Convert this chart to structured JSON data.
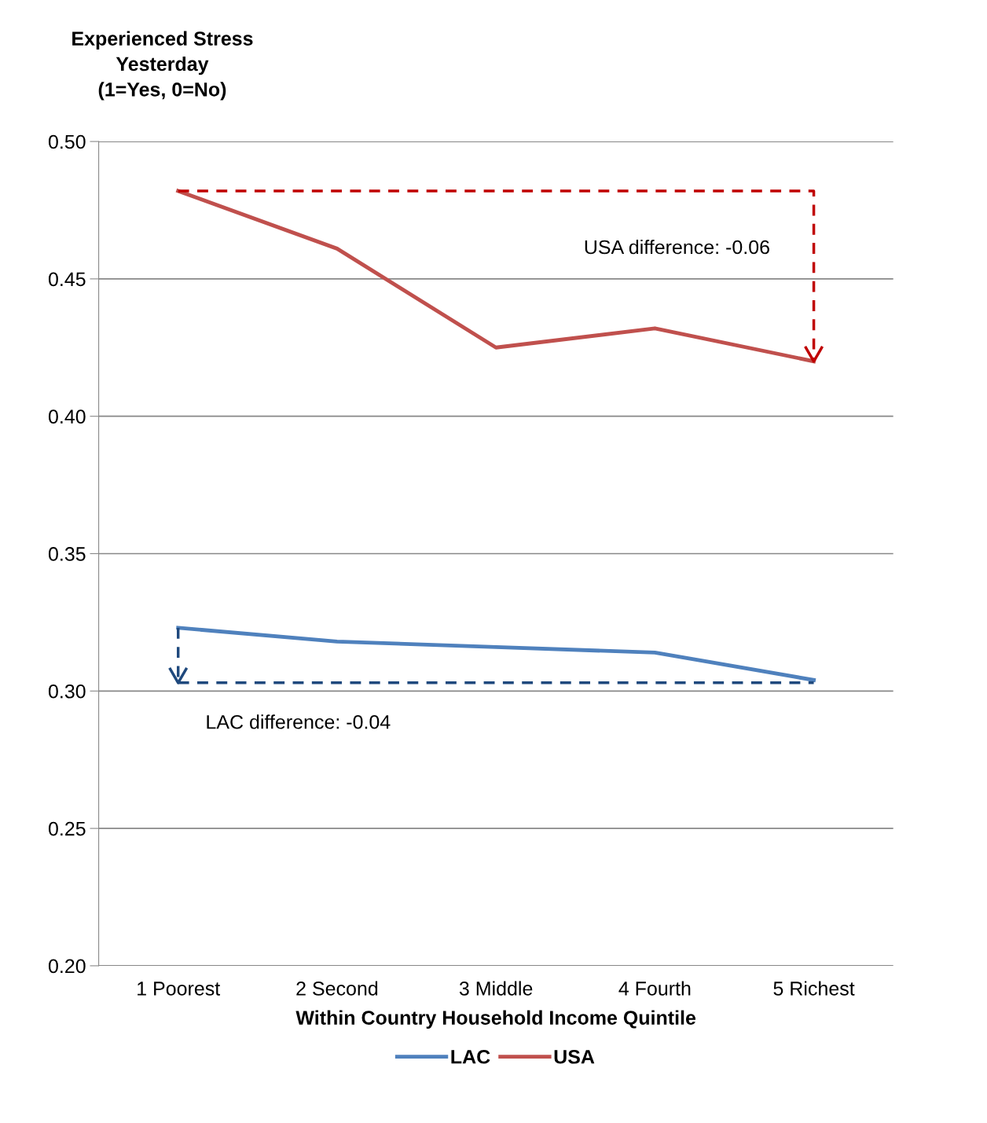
{
  "chart_data": {
    "type": "line",
    "ylabel": "Experienced Stress\nYesterday\n(1=Yes, 0=No)",
    "xlabel": "Within Country Household Income Quintile",
    "categories": [
      "1 Poorest",
      "2 Second",
      "3 Middle",
      "4 Fourth",
      "5 Richest"
    ],
    "series": [
      {
        "name": "LAC",
        "color": "#4f81bd",
        "values": [
          0.323,
          0.318,
          0.316,
          0.314,
          0.304
        ]
      },
      {
        "name": "USA",
        "color": "#c0504d",
        "values": [
          0.482,
          0.461,
          0.425,
          0.432,
          0.42
        ]
      }
    ],
    "annotations": [
      "LAC difference: -0.04",
      "USA difference: -0.06"
    ],
    "ylim": [
      0.2,
      0.5
    ],
    "yticks": [
      {
        "value": 0.2,
        "label": "0.20"
      },
      {
        "value": 0.25,
        "label": "0.25"
      },
      {
        "value": 0.3,
        "label": "0.30"
      },
      {
        "value": 0.35,
        "label": "0.35"
      },
      {
        "value": 0.4,
        "label": "0.40"
      },
      {
        "value": 0.45,
        "label": "0.45"
      },
      {
        "value": 0.5,
        "label": "0.50"
      }
    ],
    "ref_lines": [
      {
        "axis": "y",
        "value": 0.303,
        "color": "#1f497d",
        "line_style": "dashed"
      }
    ],
    "grid": "y",
    "legend": "bottom",
    "marker": "none",
    "line_style": "solid"
  }
}
